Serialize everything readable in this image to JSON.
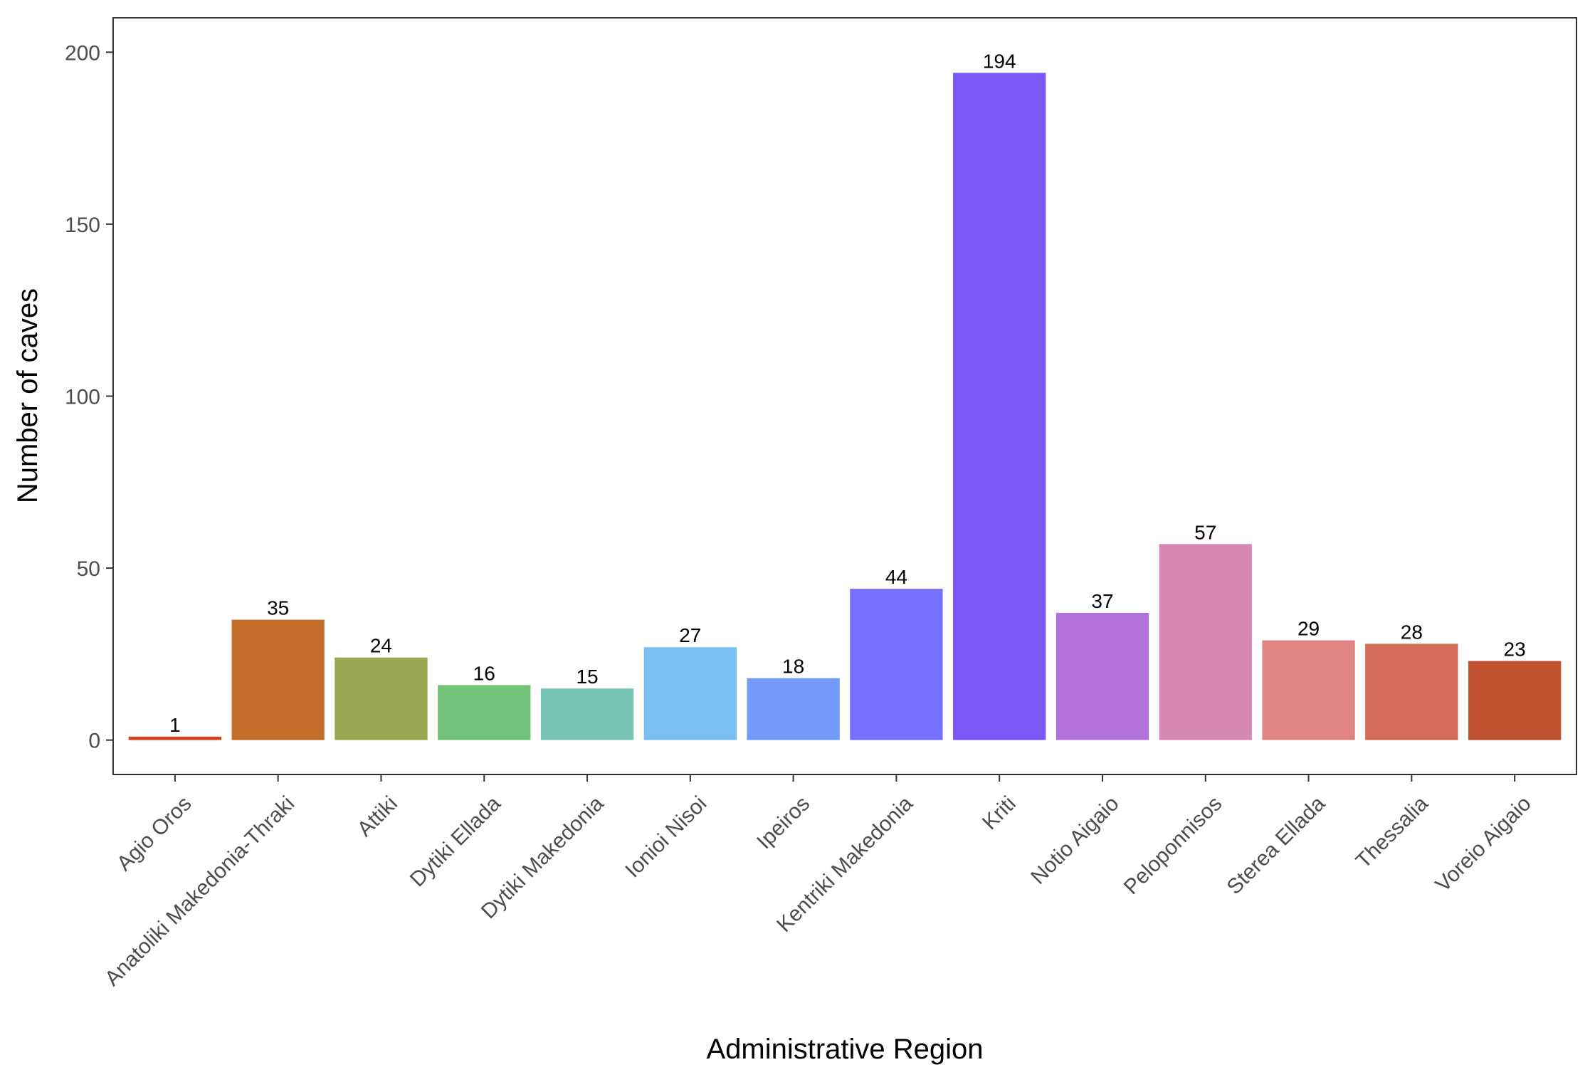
{
  "chart_data": {
    "type": "bar",
    "xlabel": "Administrative Region",
    "ylabel": "Number of caves",
    "ylim": [
      -10,
      210
    ],
    "yticks": [
      0,
      50,
      100,
      150,
      200
    ],
    "grid": false,
    "legend": "none",
    "categories": [
      "Agio Oros",
      "Anatoliki Makedonia-Thraki",
      "Attiki",
      "Dytiki Ellada",
      "Dytiki Makedonia",
      "Ionioi Nisoi",
      "Ipeiros",
      "Kentriki Makedonia",
      "Kriti",
      "Notio Aigaio",
      "Peloponnisos",
      "Sterea Ellada",
      "Thessalia",
      "Voreio Aigaio"
    ],
    "values": [
      1,
      35,
      24,
      16,
      15,
      27,
      18,
      44,
      194,
      37,
      57,
      29,
      28,
      23
    ],
    "data_labels": [
      "1",
      "35",
      "24",
      "16",
      "15",
      "27",
      "18",
      "44",
      "194",
      "37",
      "57",
      "29",
      "28",
      "23"
    ],
    "colors": [
      "#D4431E",
      "#C56E2C",
      "#9AA650",
      "#73C47A",
      "#78C4B4",
      "#78C0F0",
      "#749BFA",
      "#7571FC",
      "#7B58F7",
      "#B171D9",
      "#D789B6",
      "#E08584",
      "#D46C58",
      "#C05130"
    ]
  }
}
